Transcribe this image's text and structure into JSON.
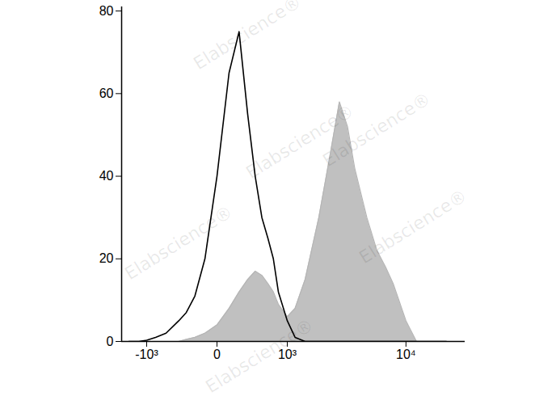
{
  "chart_data": {
    "type": "line",
    "log": "x",
    "x": [
      -1500,
      -1200,
      -1000,
      -800,
      -600,
      -400,
      -300,
      -200,
      -100,
      0,
      100,
      200,
      300,
      400,
      500,
      600,
      700,
      800,
      1000,
      1200,
      1500,
      2000,
      2500,
      3000,
      3500,
      4000,
      5000,
      6000,
      7000,
      8000,
      10000,
      12000,
      15000,
      20000
    ],
    "series": [
      {
        "type": "area",
        "color": "#b5b5b5",
        "values": [
          0,
          0,
          0,
          0,
          0,
          0,
          0.5,
          1,
          2,
          4,
          8,
          12,
          15,
          17,
          16,
          14,
          12,
          9,
          6,
          8,
          15,
          30,
          45,
          58,
          52,
          42,
          30,
          22,
          18,
          14,
          5,
          0,
          0,
          0
        ]
      },
      {
        "type": "line",
        "color": "#000000",
        "values": [
          0,
          0,
          0.3,
          1,
          2,
          5,
          7,
          11,
          20,
          40,
          65,
          75,
          55,
          40,
          30,
          25,
          20,
          12,
          5,
          1,
          0,
          0,
          0,
          0,
          0,
          0,
          0,
          0,
          0,
          0,
          0,
          0,
          0,
          0
        ]
      }
    ],
    "xlim": [
      -1750,
      27500
    ],
    "xticks": [
      {
        "value": -1000,
        "label": "-10³"
      },
      0,
      {
        "value": 1000,
        "label": "10³"
      },
      {
        "value": 10000,
        "label": "10⁴"
      }
    ],
    "ylim": [
      0,
      81
    ],
    "yticks": [
      0,
      20,
      40,
      60,
      80
    ],
    "annotations": [
      "Elabscience®"
    ]
  }
}
